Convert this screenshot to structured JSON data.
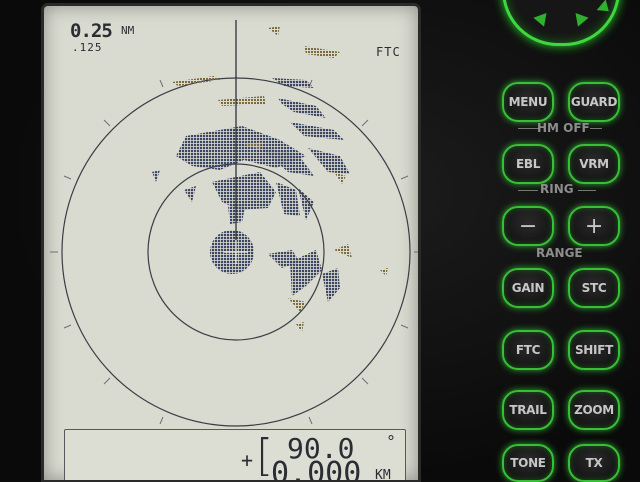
{
  "display": {
    "range_value": "0.25",
    "range_unit": "NM",
    "range_ring_interval": ".125",
    "filter_mode": "FTC",
    "cursor_bearing": "90.0",
    "bearing_unit": "°",
    "cursor_distance": "0.000",
    "distance_unit": "KM"
  },
  "keypad": {
    "menu": "MENU",
    "guard": "GUARD",
    "hm_off": "HM OFF",
    "ebl": "EBL",
    "vrm": "VRM",
    "ring": "RING",
    "range_minus": "−",
    "range_plus": "+",
    "range": "RANGE",
    "gain": "GAIN",
    "stc": "STC",
    "ftc": "FTC",
    "shift": "SHIFT",
    "trail": "TRAIL",
    "zoom": "ZOOM",
    "tone": "TONE",
    "tx": "TX"
  },
  "colors": {
    "screen": "#d9dbd1",
    "echo": "#3d4660",
    "clutter": "#7c6a3d",
    "key_glow": "#37c037"
  }
}
